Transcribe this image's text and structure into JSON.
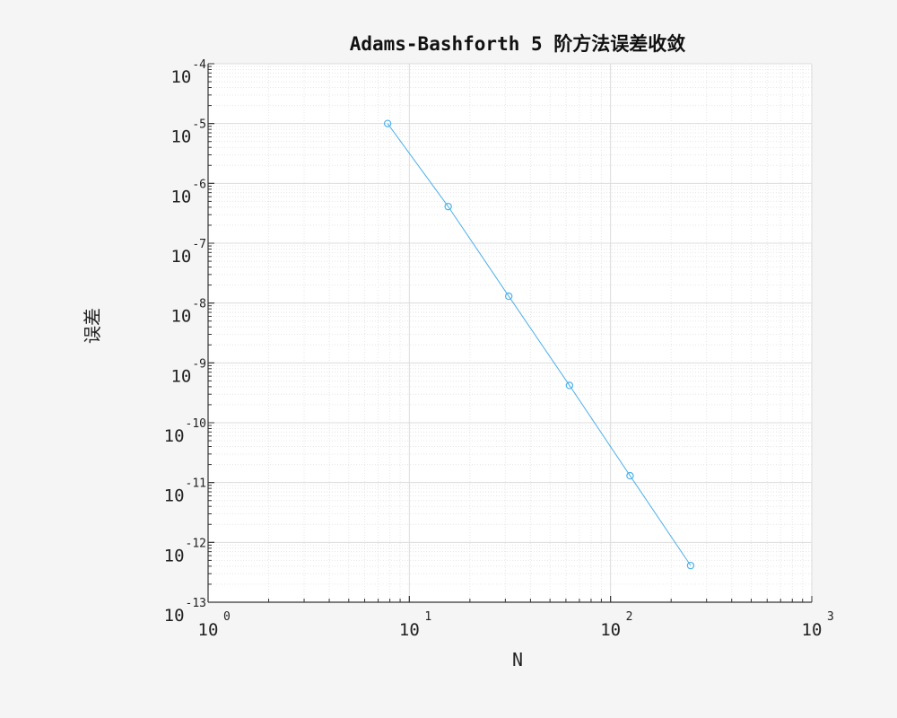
{
  "chart_data": {
    "type": "line",
    "title": "Adams-Bashforth 5 阶方法误差收敛",
    "xlabel": "N",
    "ylabel": "误差",
    "xscale": "log",
    "yscale": "log",
    "xlim": [
      1,
      1000
    ],
    "ylim": [
      1e-13,
      0.0001
    ],
    "grid": true,
    "minor_grid": true,
    "x_ticks": [
      {
        "value": 1,
        "base": "10",
        "exp": "0"
      },
      {
        "value": 10,
        "base": "10",
        "exp": "1"
      },
      {
        "value": 100,
        "base": "10",
        "exp": "2"
      },
      {
        "value": 1000,
        "base": "10",
        "exp": "3"
      }
    ],
    "y_ticks": [
      {
        "value": 0.0001,
        "base": "10",
        "exp": "-4"
      },
      {
        "value": 1e-05,
        "base": "10",
        "exp": "-5"
      },
      {
        "value": 1e-06,
        "base": "10",
        "exp": "-6"
      },
      {
        "value": 1e-07,
        "base": "10",
        "exp": "-7"
      },
      {
        "value": 1e-08,
        "base": "10",
        "exp": "-8"
      },
      {
        "value": 1e-09,
        "base": "10",
        "exp": "-9"
      },
      {
        "value": 1e-10,
        "base": "10",
        "exp": "-10"
      },
      {
        "value": 1e-11,
        "base": "10",
        "exp": "-11"
      },
      {
        "value": 1e-12,
        "base": "10",
        "exp": "-12"
      },
      {
        "value": 1e-13,
        "base": "10",
        "exp": "-13"
      }
    ],
    "series": [
      {
        "color": "#4db0e8",
        "marker": "circle",
        "x": [
          7.8,
          15.6,
          31.2,
          62.5,
          125,
          250
        ],
        "y": [
          1e-05,
          4.1e-07,
          1.3e-08,
          4.2e-10,
          1.3e-11,
          4.1e-13
        ]
      }
    ]
  }
}
